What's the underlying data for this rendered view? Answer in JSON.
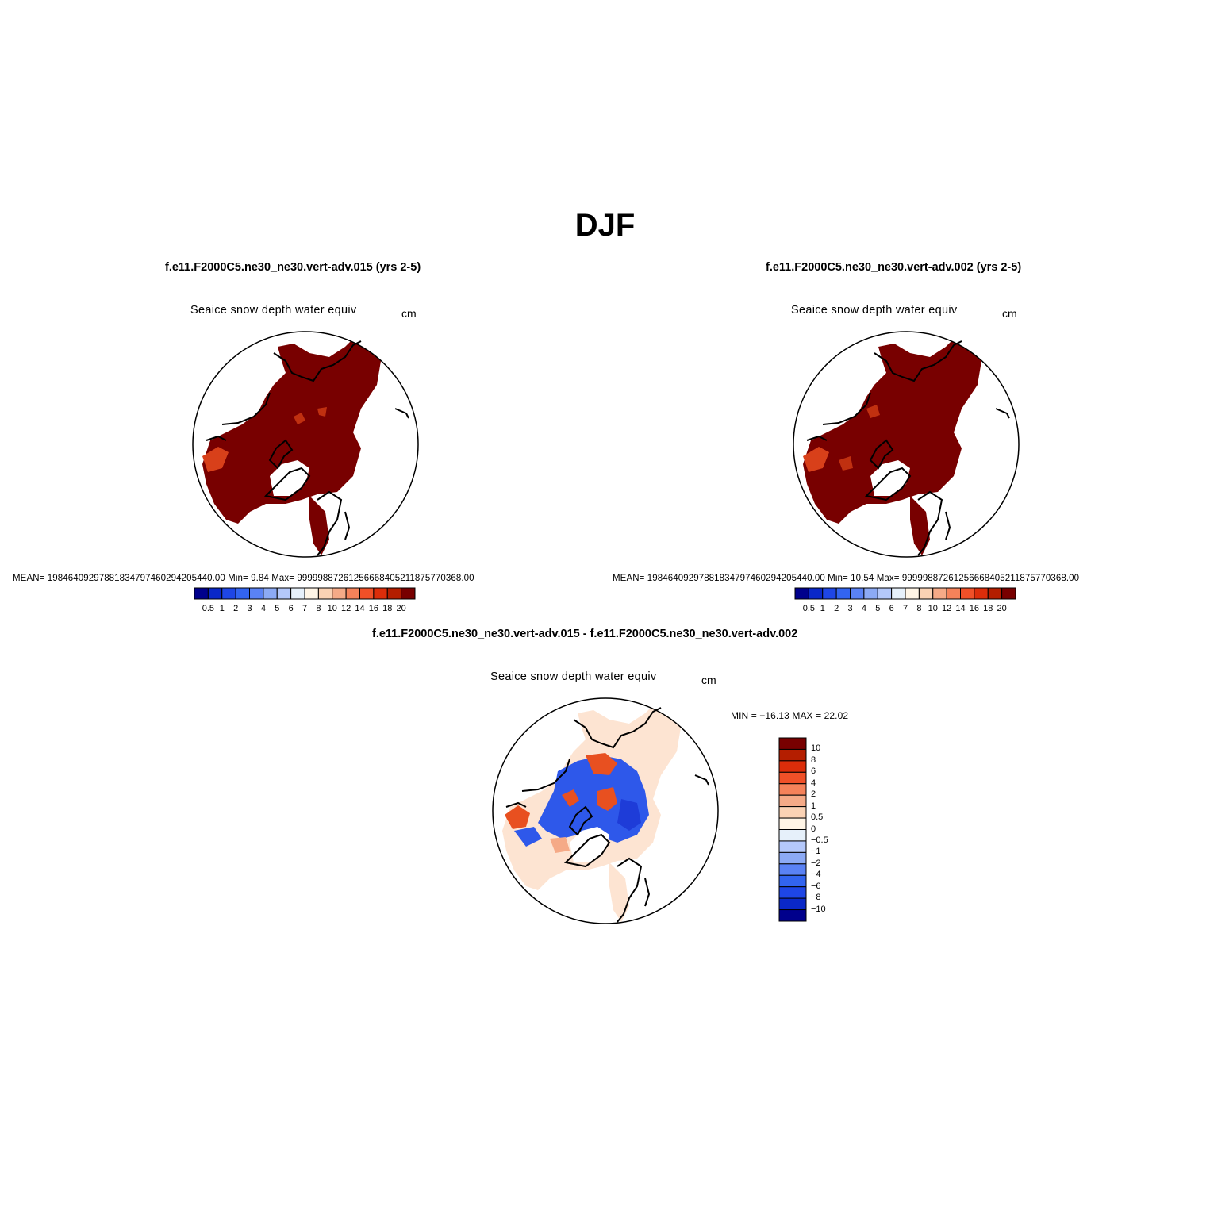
{
  "title": "DJF",
  "panels": [
    {
      "id": "left",
      "case_title": "f.e11.F2000C5.ne30_ne30.vert-adv.015 (yrs 2-5)",
      "variable": "Seaice snow depth water equiv",
      "units": "cm",
      "stats": "MEAN= 19846409297881834797460294205440.00   Min=     9.84   Max= 99999887261256668405211875770368.00"
    },
    {
      "id": "right",
      "case_title": "f.e11.F2000C5.ne30_ne30.vert-adv.002 (yrs 2-5)",
      "variable": "Seaice snow depth water equiv",
      "units": "cm",
      "stats": "MEAN= 19846409297881834797460294205440.00   Min=   10.54   Max= 99999887261256668405211875770368.00"
    },
    {
      "id": "diff",
      "case_title": "f.e11.F2000C5.ne30_ne30.vert-adv.015 - f.e11.F2000C5.ne30_ne30.vert-adv.002",
      "variable": "Seaice snow depth water equiv",
      "units": "cm",
      "stats": "MIN = −16.13 MAX =  22.02"
    }
  ],
  "colorbar_top": {
    "labels": [
      "0.5",
      "1",
      "2",
      "3",
      "4",
      "5",
      "6",
      "7",
      "8",
      "10",
      "12",
      "14",
      "16",
      "18",
      "20"
    ],
    "colors": [
      "#00008c",
      "#0a28c8",
      "#1e46e6",
      "#3264f0",
      "#5a82f5",
      "#8caaf5",
      "#b4c8fa",
      "#e6f0fa",
      "#fff5e6",
      "#fad2b4",
      "#f5aa87",
      "#f5825a",
      "#f05028",
      "#dc2d0a",
      "#b41e00",
      "#780000"
    ]
  },
  "colorbar_diff": {
    "labels": [
      "10",
      "8",
      "6",
      "4",
      "2",
      "1",
      "0.5",
      "0",
      "−0.5",
      "−1",
      "−2",
      "−4",
      "−6",
      "−8",
      "−10"
    ],
    "colors": [
      "#780000",
      "#b41e00",
      "#dc2d0a",
      "#f05028",
      "#f5825a",
      "#f5aa87",
      "#fad2b4",
      "#fff5e6",
      "#e6f0fa",
      "#b4c8fa",
      "#8caaf5",
      "#5a82f5",
      "#3264f0",
      "#1e46e6",
      "#0a28c8",
      "#00008c"
    ]
  }
}
